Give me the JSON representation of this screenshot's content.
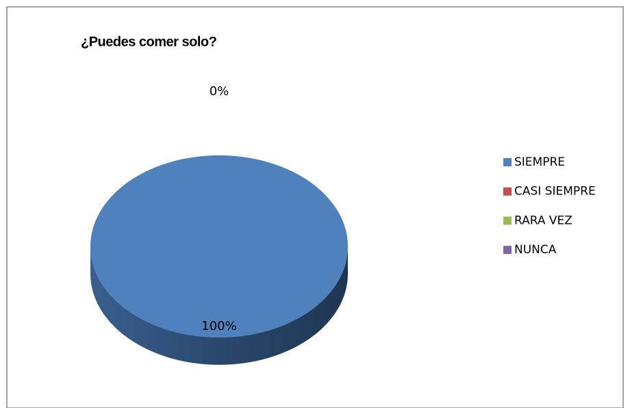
{
  "chart_data": {
    "type": "pie",
    "title": "¿Puedes comer solo?",
    "categories": [
      "SIEMPRE",
      "CASI SIEMPRE",
      "RARA VEZ",
      "NUNCA"
    ],
    "values": [
      100,
      0,
      0,
      0
    ],
    "value_labels": [
      "100%",
      "0%",
      null,
      null
    ],
    "colors": [
      "#4f81bd",
      "#c0504d",
      "#9bbb59",
      "#8064a2"
    ],
    "legend": "right"
  }
}
